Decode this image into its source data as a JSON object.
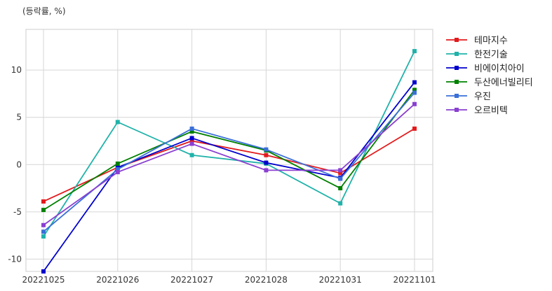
{
  "chart_data": {
    "type": "line",
    "title": "",
    "unit_label": "(등락률, %)",
    "xlabel": "",
    "ylabel": "",
    "x": [
      "20221025",
      "20221026",
      "20221027",
      "20221028",
      "20221031",
      "20221101"
    ],
    "ylim": [
      -11.3,
      14.3
    ],
    "yticks": [
      -10,
      -5,
      0,
      5,
      10
    ],
    "grid": true,
    "legend_position": "right",
    "series": [
      {
        "name": "테마지수",
        "color": "#e31a1c",
        "values": [
          -3.9,
          -0.3,
          2.5,
          1.0,
          -0.9,
          3.8
        ]
      },
      {
        "name": "한전기술",
        "color": "#20b2aa",
        "values": [
          -7.6,
          4.5,
          1.0,
          0.1,
          -4.1,
          12.0
        ]
      },
      {
        "name": "비에이치아이",
        "color": "#0000cd",
        "values": [
          -11.3,
          -0.3,
          2.8,
          0.2,
          -1.4,
          8.7
        ]
      },
      {
        "name": "두산에너빌리티",
        "color": "#008000",
        "values": [
          -4.8,
          0.1,
          3.5,
          1.5,
          -2.5,
          7.9
        ]
      },
      {
        "name": "우진",
        "color": "#3a6fd8",
        "values": [
          -7.1,
          -0.5,
          3.8,
          1.6,
          -1.5,
          7.6
        ]
      },
      {
        "name": "오르비텍",
        "color": "#8a3fd1",
        "values": [
          -6.4,
          -0.8,
          2.2,
          -0.6,
          -0.6,
          6.4
        ]
      }
    ]
  }
}
